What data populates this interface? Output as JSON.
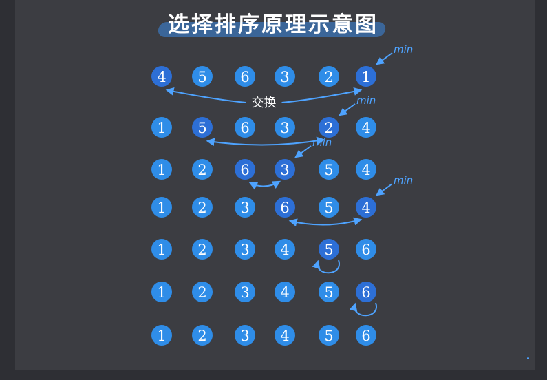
{
  "title": "选择排序原理示意图",
  "swap_label": "交换",
  "min_label": "min",
  "colors": {
    "background": "#3c3d42",
    "circle_fill": "#2f8de8",
    "circle_dark": "#2d6fd6",
    "arrow": "#4ea3ff",
    "text": "#ffffff",
    "title_brush": "#3b6da8"
  },
  "rows": [
    {
      "values": [
        "4",
        "5",
        "6",
        "3",
        "2",
        "1"
      ],
      "min_index": 5,
      "swap": [
        0,
        5
      ],
      "show_swap_label": true
    },
    {
      "values": [
        "1",
        "5",
        "6",
        "3",
        "2",
        "4"
      ],
      "min_index": 4,
      "swap": [
        1,
        4
      ],
      "show_swap_label": false
    },
    {
      "values": [
        "1",
        "2",
        "6",
        "3",
        "5",
        "4"
      ],
      "min_index": 3,
      "swap": [
        2,
        3
      ],
      "show_swap_label": false
    },
    {
      "values": [
        "1",
        "2",
        "3",
        "6",
        "5",
        "4"
      ],
      "min_index": 5,
      "swap": [
        3,
        5
      ],
      "show_swap_label": false
    },
    {
      "values": [
        "1",
        "2",
        "3",
        "4",
        "5",
        "6"
      ],
      "min_index": null,
      "self_loop": 4,
      "show_swap_label": false
    },
    {
      "values": [
        "1",
        "2",
        "3",
        "4",
        "5",
        "6"
      ],
      "min_index": null,
      "self_loop": 5,
      "show_swap_label": false
    },
    {
      "values": [
        "1",
        "2",
        "3",
        "4",
        "5",
        "6"
      ],
      "min_index": null,
      "show_swap_label": false
    }
  ]
}
